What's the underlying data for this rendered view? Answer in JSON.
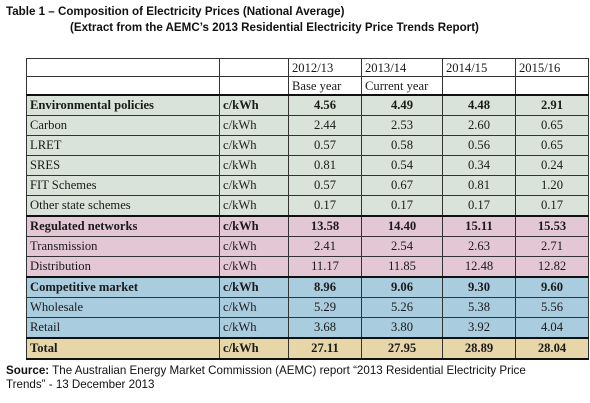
{
  "title": {
    "line1": "Table 1 – Composition of Electricity Prices (National Average)",
    "line2": "(Extract from the AEMC’s 2013 Residential Electricity Price Trends Report)"
  },
  "table": {
    "header": [
      {
        "year": "2012/13",
        "note": "Base year"
      },
      {
        "year": "2013/14",
        "note": "Current year"
      },
      {
        "year": "2014/15",
        "note": ""
      },
      {
        "year": "2015/16",
        "note": ""
      }
    ],
    "rows": [
      {
        "label": "Environmental policies",
        "unit": "c/kWh",
        "values": [
          "4.56",
          "4.49",
          "4.48",
          "2.91"
        ],
        "group": "env",
        "bold": true
      },
      {
        "label": "Carbon",
        "unit": "c/kWh",
        "values": [
          "2.44",
          "2.53",
          "2.60",
          "0.65"
        ],
        "group": "env",
        "bold": false
      },
      {
        "label": "LRET",
        "unit": "c/kWh",
        "values": [
          "0.57",
          "0.58",
          "0.56",
          "0.65"
        ],
        "group": "env",
        "bold": false
      },
      {
        "label": "SRES",
        "unit": "c/kWh",
        "values": [
          "0.81",
          "0.54",
          "0.34",
          "0.24"
        ],
        "group": "env",
        "bold": false
      },
      {
        "label": "FIT Schemes",
        "unit": "c/kWh",
        "values": [
          "0.57",
          "0.67",
          "0.81",
          "1.20"
        ],
        "group": "env",
        "bold": false
      },
      {
        "label": "Other state schemes",
        "unit": "c/kWh",
        "values": [
          "0.17",
          "0.17",
          "0.17",
          "0.17"
        ],
        "group": "env",
        "bold": false
      },
      {
        "label": "Regulated networks",
        "unit": "c/kWh",
        "values": [
          "13.58",
          "14.40",
          "15.11",
          "15.53"
        ],
        "group": "reg",
        "bold": true
      },
      {
        "label": "Transmission",
        "unit": "c/kWh",
        "values": [
          "2.41",
          "2.54",
          "2.63",
          "2.71"
        ],
        "group": "reg",
        "bold": false
      },
      {
        "label": "Distribution",
        "unit": "c/kWh",
        "values": [
          "11.17",
          "11.85",
          "12.48",
          "12.82"
        ],
        "group": "reg",
        "bold": false
      },
      {
        "label": "Competitive market",
        "unit": "c/kWh",
        "values": [
          "8.96",
          "9.06",
          "9.30",
          "9.60"
        ],
        "group": "comp",
        "bold": true
      },
      {
        "label": "Wholesale",
        "unit": "c/kWh",
        "values": [
          "5.29",
          "5.26",
          "5.38",
          "5.56"
        ],
        "group": "comp",
        "bold": false
      },
      {
        "label": "Retail",
        "unit": "c/kWh",
        "values": [
          "3.68",
          "3.80",
          "3.92",
          "4.04"
        ],
        "group": "comp",
        "bold": false
      },
      {
        "label": "Total",
        "unit": "c/kWh",
        "values": [
          "27.11",
          "27.95",
          "28.89",
          "28.04"
        ],
        "group": "total",
        "bold": true
      }
    ]
  },
  "source": {
    "label": "Source:",
    "text": " The Australian Energy Market Commission (AEMC) report “2013 Residential Electricity Price Trends” - 13 December 2013"
  },
  "colors": {
    "environmental": "#d9e3da",
    "regulated": "#e3c7d4",
    "competitive": "#a9ccdf",
    "total": "#e6d6a8"
  }
}
